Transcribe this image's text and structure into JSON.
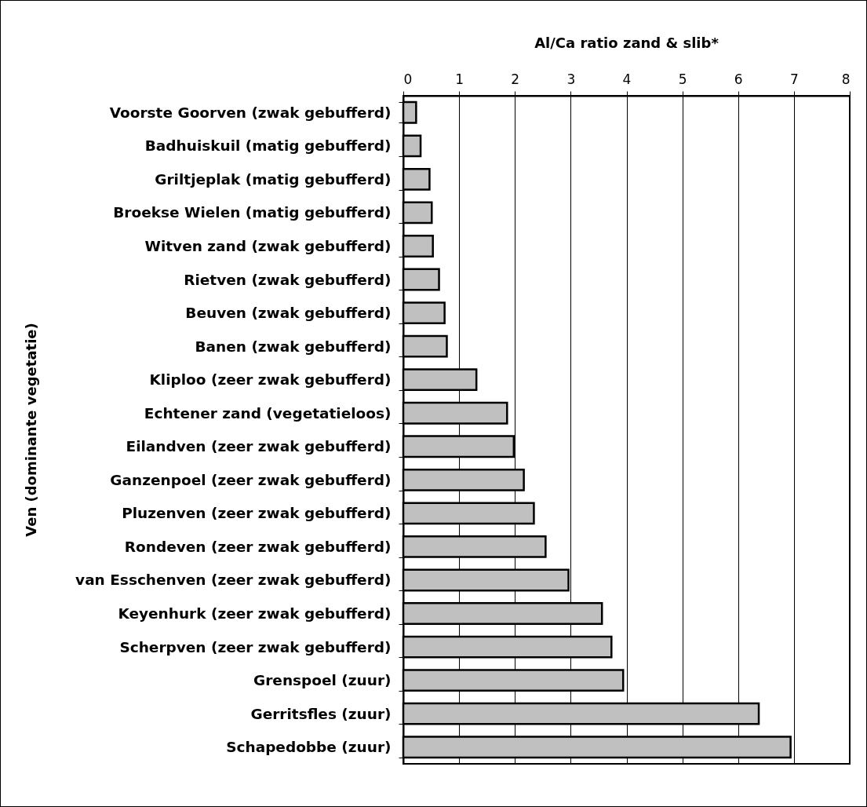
{
  "chart_data": {
    "type": "bar",
    "orientation": "horizontal",
    "xlabel": "Al/Ca ratio zand & slib*",
    "ylabel": "Ven (dominante vegetatie)",
    "categories": [
      "Voorste Goorven (zwak gebufferd)",
      "Badhuiskuil (matig gebufferd)",
      "Griltjeplak (matig gebufferd)",
      "Broekse Wielen (matig gebufferd)",
      "Witven zand (zwak gebufferd)",
      "Rietven (zwak gebufferd)",
      "Beuven (zwak gebufferd)",
      "Banen (zwak gebufferd)",
      "Kliploo (zeer zwak gebufferd)",
      "Echtener zand (vegetatieloos)",
      "Eilandven (zeer zwak gebufferd)",
      "Ganzenpoel (zeer zwak gebufferd)",
      "Pluzenven (zeer zwak gebufferd)",
      "Rondeven (zeer zwak gebufferd)",
      "van Esschenven (zeer zwak gebufferd)",
      "Keyenhurk (zeer zwak gebufferd)",
      "Scherpven (zeer zwak gebufferd)",
      "Grenspoel (zuur)",
      "Gerritsfles (zuur)",
      "Schapedobbe (zuur)"
    ],
    "values": [
      0.23,
      0.31,
      0.47,
      0.51,
      0.53,
      0.64,
      0.74,
      0.78,
      1.31,
      1.86,
      1.98,
      2.16,
      2.34,
      2.55,
      2.96,
      3.56,
      3.73,
      3.94,
      6.37,
      6.94
    ],
    "color": "#c0c0c0",
    "xlim": [
      0,
      8
    ],
    "xticks": [
      0,
      1,
      2,
      3,
      4,
      5,
      6,
      7,
      8
    ],
    "grid": "x"
  }
}
